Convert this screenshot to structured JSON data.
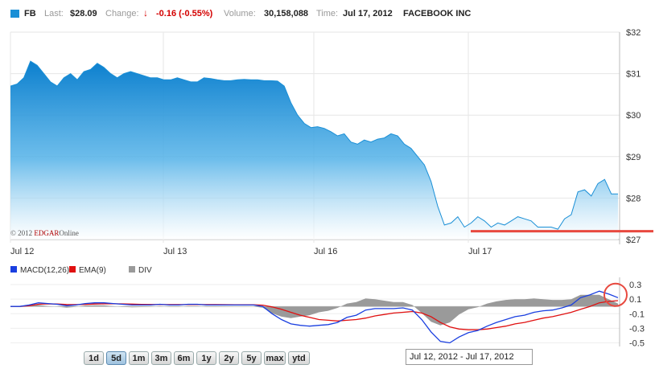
{
  "header": {
    "ticker": "FB",
    "last_label": "Last:",
    "last_value": "$28.09",
    "change_label": "Change:",
    "change_arrow": "↓",
    "change_value": "-0.16 (-0.55%)",
    "volume_label": "Volume:",
    "volume_value": "30,158,088",
    "time_label": "Time:",
    "time_value": "Jul 17, 2012",
    "company": "FACEBOOK INC",
    "accent_color": "#1a8fd6",
    "negative_color": "#d40000"
  },
  "watermark": {
    "prefix": "© 2012 ",
    "brand": "EDGAR",
    "suffix": "Online"
  },
  "range_buttons": [
    "1d",
    "5d",
    "1m",
    "3m",
    "6m",
    "1y",
    "2y",
    "5y",
    "max",
    "ytd"
  ],
  "selected_range": "5d",
  "date_range": "Jul 12, 2012 - Jul 17, 2012",
  "chart_data": [
    {
      "type": "area",
      "ylim": [
        27,
        32
      ],
      "yticks": [
        "$32",
        "$31",
        "$30",
        "$29",
        "$28",
        "$27"
      ],
      "xticks": [
        "Jul 12",
        "Jul 13",
        "Jul 16",
        "Jul 17"
      ],
      "grid": true,
      "series": [
        {
          "values": [
            30.7,
            30.75,
            30.9,
            31.3,
            31.2,
            31.0,
            30.8,
            30.7,
            30.9,
            31.0,
            30.85,
            31.05,
            31.1,
            31.25,
            31.15,
            31.0,
            30.9,
            31.0,
            31.05,
            31.0,
            30.95,
            30.9,
            30.9,
            30.85,
            30.85,
            30.9,
            30.85,
            30.8,
            30.8,
            30.9,
            30.88,
            30.85,
            30.83,
            30.83,
            30.85,
            30.86,
            30.85,
            30.85,
            30.83,
            30.83,
            30.82,
            30.7,
            30.3,
            30.0,
            29.8,
            29.7,
            29.72,
            29.68,
            29.6,
            29.5,
            29.55,
            29.35,
            29.3,
            29.4,
            29.35,
            29.42,
            29.45,
            29.55,
            29.5,
            29.3,
            29.2,
            29.0,
            28.8,
            28.4,
            27.8,
            27.35,
            27.4,
            27.55,
            27.3,
            27.4,
            27.55,
            27.45,
            27.3,
            27.4,
            27.35,
            27.45,
            27.55,
            27.5,
            27.45,
            27.3,
            27.3,
            27.3,
            27.25,
            27.5,
            27.6,
            28.15,
            28.2,
            28.05,
            28.35,
            28.45,
            28.1,
            28.1
          ]
        }
      ],
      "support_line": 27.2,
      "support_color": "#e8493f"
    },
    {
      "type": "line",
      "ylim": [
        -0.55,
        0.4
      ],
      "yticks": [
        "0.3",
        "0.1",
        "-0.1",
        "-0.3",
        "-0.5"
      ],
      "grid": true,
      "series": [
        {
          "name": "MACD(12,26)",
          "color": "#1a3fe0",
          "values": [
            0.0,
            0.0,
            0.02,
            0.05,
            0.04,
            0.03,
            0.01,
            0.02,
            0.04,
            0.05,
            0.05,
            0.04,
            0.03,
            0.02,
            0.02,
            0.02,
            0.03,
            0.02,
            0.02,
            0.03,
            0.03,
            0.02,
            0.02,
            0.02,
            0.02,
            0.02,
            0.02,
            0.0,
            -0.1,
            -0.18,
            -0.24,
            -0.26,
            -0.27,
            -0.26,
            -0.25,
            -0.22,
            -0.15,
            -0.12,
            -0.05,
            -0.03,
            -0.03,
            -0.03,
            -0.02,
            -0.05,
            -0.18,
            -0.35,
            -0.48,
            -0.5,
            -0.42,
            -0.36,
            -0.33,
            -0.27,
            -0.22,
            -0.18,
            -0.14,
            -0.12,
            -0.08,
            -0.06,
            -0.05,
            -0.02,
            0.02,
            0.12,
            0.16,
            0.21,
            0.17,
            0.12
          ]
        },
        {
          "name": "EMA(9)",
          "color": "#e01010",
          "values": [
            0.0,
            0.0,
            0.01,
            0.03,
            0.035,
            0.033,
            0.027,
            0.025,
            0.028,
            0.033,
            0.036,
            0.037,
            0.035,
            0.032,
            0.029,
            0.027,
            0.027,
            0.026,
            0.025,
            0.026,
            0.027,
            0.026,
            0.025,
            0.024,
            0.023,
            0.023,
            0.022,
            0.018,
            -0.006,
            -0.04,
            -0.08,
            -0.12,
            -0.15,
            -0.18,
            -0.19,
            -0.2,
            -0.19,
            -0.18,
            -0.16,
            -0.13,
            -0.11,
            -0.09,
            -0.08,
            -0.07,
            -0.09,
            -0.14,
            -0.22,
            -0.28,
            -0.31,
            -0.32,
            -0.32,
            -0.31,
            -0.29,
            -0.27,
            -0.24,
            -0.22,
            -0.19,
            -0.16,
            -0.14,
            -0.11,
            -0.08,
            -0.04,
            0.0,
            0.05,
            0.07,
            0.08
          ]
        },
        {
          "name": "DIV",
          "color": "#9a9a9a",
          "type": "area"
        }
      ],
      "highlight_circle_color": "#e8493f"
    }
  ]
}
